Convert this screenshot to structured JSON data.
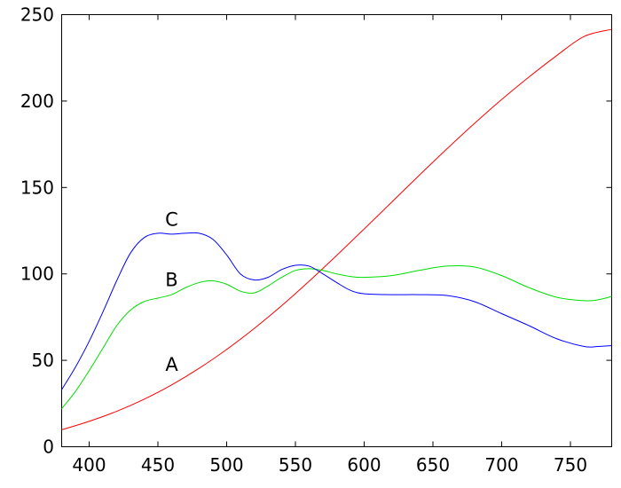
{
  "chart_data": {
    "type": "line",
    "title": "",
    "xlabel": "",
    "ylabel": "",
    "xlim": [
      380,
      780
    ],
    "ylim": [
      0,
      250
    ],
    "x_ticks": [
      400,
      450,
      500,
      550,
      600,
      650,
      700,
      750
    ],
    "y_ticks": [
      0,
      50,
      100,
      150,
      200,
      250
    ],
    "grid": false,
    "legend": "none",
    "series": [
      {
        "name": "A",
        "color": "#ff0000",
        "label_at": [
          460,
          48
        ],
        "points": [
          [
            380,
            9.8
          ],
          [
            400,
            14.7
          ],
          [
            420,
            20.5
          ],
          [
            440,
            27.5
          ],
          [
            460,
            35.8
          ],
          [
            480,
            45.4
          ],
          [
            500,
            56.3
          ],
          [
            520,
            68.4
          ],
          [
            540,
            81.6
          ],
          [
            560,
            95.8
          ],
          [
            580,
            110.7
          ],
          [
            600,
            126.0
          ],
          [
            620,
            141.5
          ],
          [
            640,
            157.0
          ],
          [
            660,
            172.2
          ],
          [
            680,
            186.9
          ],
          [
            700,
            200.9
          ],
          [
            720,
            214.0
          ],
          [
            740,
            226.3
          ],
          [
            760,
            237.4
          ],
          [
            780,
            241.5
          ]
        ]
      },
      {
        "name": "B",
        "color": "#00dd00",
        "label_at": [
          460,
          97
        ],
        "points": [
          [
            380,
            22
          ],
          [
            390,
            32
          ],
          [
            400,
            44
          ],
          [
            410,
            57
          ],
          [
            420,
            70
          ],
          [
            430,
            79
          ],
          [
            440,
            84
          ],
          [
            450,
            86
          ],
          [
            460,
            88
          ],
          [
            470,
            92
          ],
          [
            480,
            95
          ],
          [
            490,
            96
          ],
          [
            500,
            94
          ],
          [
            510,
            90
          ],
          [
            520,
            89
          ],
          [
            530,
            93
          ],
          [
            540,
            98
          ],
          [
            550,
            102
          ],
          [
            560,
            103
          ],
          [
            570,
            102
          ],
          [
            580,
            100
          ],
          [
            590,
            98.5
          ],
          [
            600,
            98
          ],
          [
            620,
            99
          ],
          [
            640,
            102
          ],
          [
            660,
            104.5
          ],
          [
            680,
            104
          ],
          [
            700,
            99
          ],
          [
            720,
            92
          ],
          [
            740,
            86.5
          ],
          [
            760,
            84.5
          ],
          [
            770,
            85
          ],
          [
            780,
            87
          ]
        ]
      },
      {
        "name": "C",
        "color": "#0000ff",
        "label_at": [
          460,
          132
        ],
        "points": [
          [
            380,
            33
          ],
          [
            390,
            46
          ],
          [
            400,
            61
          ],
          [
            410,
            78
          ],
          [
            420,
            96
          ],
          [
            430,
            112
          ],
          [
            440,
            121
          ],
          [
            450,
            123.5
          ],
          [
            460,
            123
          ],
          [
            470,
            123.5
          ],
          [
            480,
            123.5
          ],
          [
            490,
            120
          ],
          [
            500,
            111
          ],
          [
            510,
            100
          ],
          [
            520,
            96.5
          ],
          [
            530,
            98
          ],
          [
            540,
            102.5
          ],
          [
            550,
            105
          ],
          [
            560,
            104.5
          ],
          [
            570,
            100
          ],
          [
            580,
            95
          ],
          [
            590,
            90.5
          ],
          [
            600,
            88.5
          ],
          [
            620,
            88
          ],
          [
            640,
            88
          ],
          [
            660,
            87.5
          ],
          [
            680,
            84
          ],
          [
            700,
            77
          ],
          [
            720,
            70
          ],
          [
            740,
            62.5
          ],
          [
            760,
            58
          ],
          [
            770,
            58
          ],
          [
            780,
            58.5
          ]
        ]
      }
    ]
  }
}
